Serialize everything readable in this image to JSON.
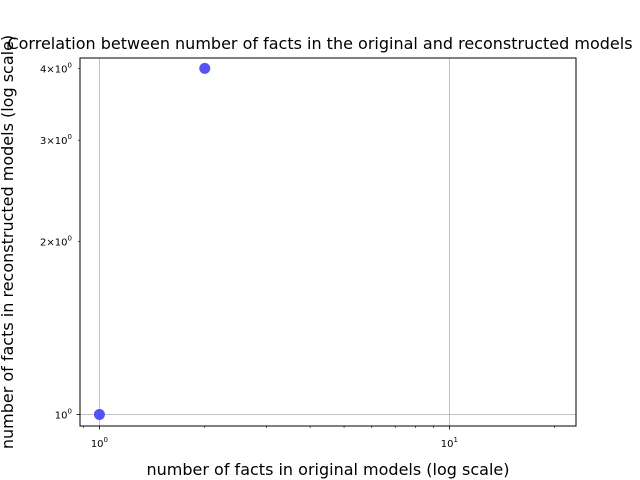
{
  "chart_data": {
    "type": "scatter",
    "title": "Correlation between number of facts in the original and reconstructed models",
    "xlabel": "number of facts in original models (log scale)",
    "ylabel": "number of facts in reconstructed models (log scale)",
    "xscale": "log",
    "yscale": "log",
    "xlim": [
      0.88,
      23
    ],
    "ylim": [
      0.955,
      4.17
    ],
    "grid": true,
    "x_major_ticks": [
      {
        "value": 1,
        "base": "10",
        "exp": "0"
      },
      {
        "value": 10,
        "base": "10",
        "exp": "1"
      }
    ],
    "y_ticks": [
      {
        "value": 1,
        "mant": "",
        "base": "10",
        "exp": "0"
      },
      {
        "value": 2,
        "mant": "2×",
        "base": "10",
        "exp": "0"
      },
      {
        "value": 3,
        "mant": "3×",
        "base": "10",
        "exp": "0"
      },
      {
        "value": 4,
        "mant": "4×",
        "base": "10",
        "exp": "0"
      }
    ],
    "points": [
      {
        "x": 1,
        "y": 1
      },
      {
        "x": 2,
        "y": 4
      }
    ],
    "marker_color": "#4b4bf5"
  }
}
